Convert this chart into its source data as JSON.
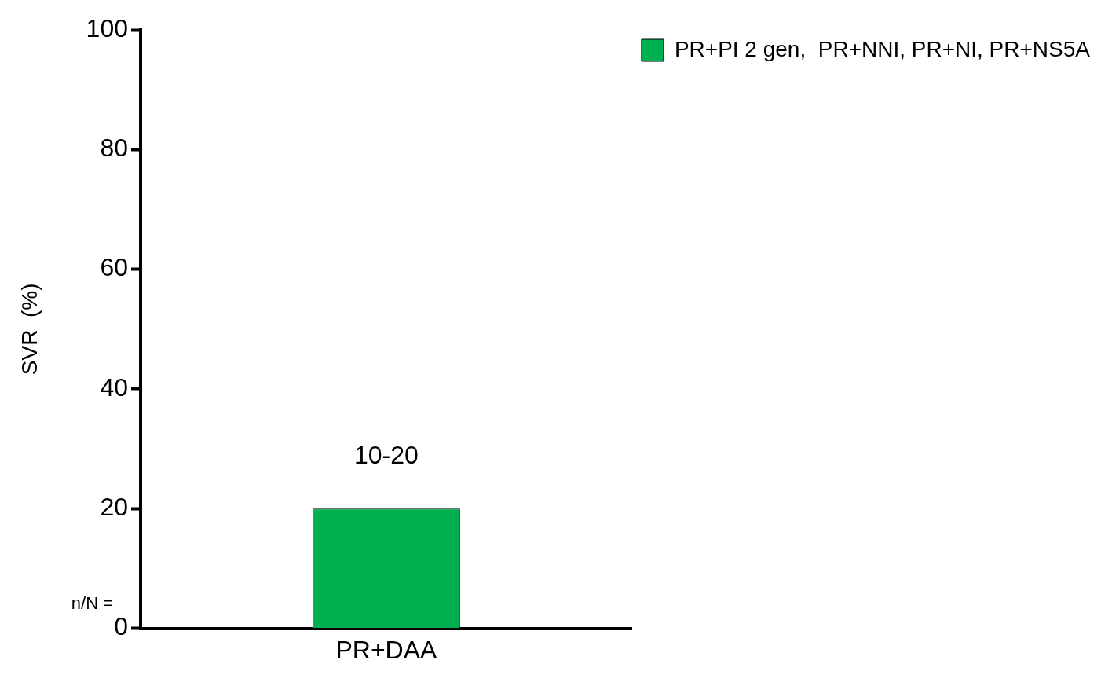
{
  "chart_data": {
    "type": "bar",
    "ylabel": "SVR  (%)",
    "categories": [
      "PR+DAA"
    ],
    "series": [
      {
        "name": "PR+PI 2 gen,  PR+NNI, PR+NI, PR+NS5A",
        "color": "#00b050",
        "values": [
          20
        ],
        "value_labels": [
          "10-20"
        ]
      }
    ],
    "ylim": [
      0,
      100
    ],
    "yticks": [
      0,
      20,
      40,
      60,
      80,
      100
    ],
    "grid": false,
    "legend": "right",
    "annotations": [
      "n/N ="
    ]
  }
}
